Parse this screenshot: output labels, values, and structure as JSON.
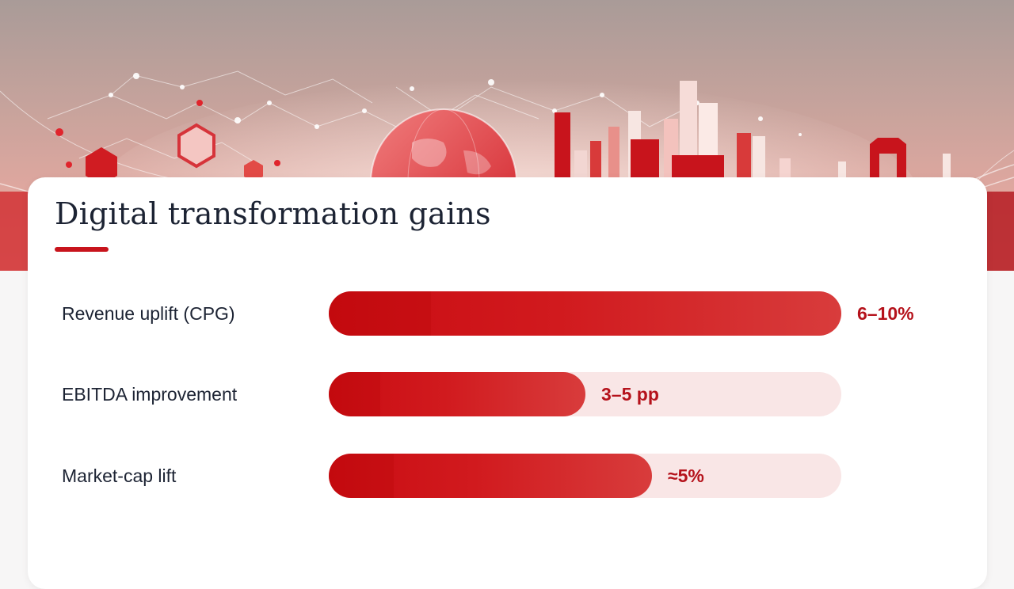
{
  "title": "Digital transformation gains",
  "accent_color": "#c8141c",
  "track_color": "#f9e6e6",
  "value_color": "#b5121b",
  "hero_icons": [
    "network-graph",
    "globe",
    "city-skyline"
  ],
  "metrics": [
    {
      "label": "Revenue uplift (CPG)",
      "value_text": "6–10%",
      "level_percent": 100
    },
    {
      "label": "EBITDA improvement",
      "value_text": "3–5 pp",
      "level_percent": 50
    },
    {
      "label": "Market-cap lift",
      "value_text": "≈5%",
      "level_percent": 63
    }
  ]
}
